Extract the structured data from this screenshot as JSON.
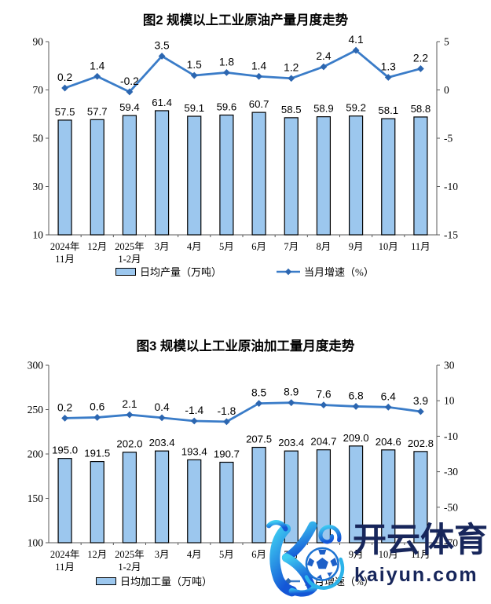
{
  "axis_color": "#595959",
  "chart_data": [
    {
      "type": "combo",
      "title": "图2 规模以上工业原油产量月度走势",
      "categories": [
        [
          "2024年",
          "11月"
        ],
        [
          "12月"
        ],
        [
          "2025年",
          "1-2月"
        ],
        [
          "3月"
        ],
        [
          "4月"
        ],
        [
          "5月"
        ],
        [
          "6月"
        ],
        [
          "7月"
        ],
        [
          "8月"
        ],
        [
          "9月"
        ],
        [
          "10月"
        ],
        [
          "11月"
        ]
      ],
      "series": [
        {
          "name": "日均产量（万吨）",
          "type": "bar",
          "axis": "left",
          "color": "#9CC7EE",
          "border_color": "#000000",
          "values": [
            57.5,
            57.7,
            59.4,
            61.4,
            59.1,
            59.6,
            60.7,
            58.5,
            58.9,
            59.2,
            58.1,
            58.8
          ]
        },
        {
          "name": "当月增速（%）",
          "type": "line",
          "axis": "right",
          "color": "#3A7CC8",
          "marker": "diamond",
          "marker_color": "#2C66B0",
          "values": [
            0.2,
            1.4,
            -0.2,
            3.5,
            1.5,
            1.8,
            1.4,
            1.2,
            2.4,
            4.1,
            1.3,
            2.2
          ]
        }
      ],
      "left_axis": {
        "min": 10,
        "max": 90,
        "ticks": [
          90,
          70,
          50,
          30,
          10
        ]
      },
      "right_axis": {
        "min": -15,
        "max": 5,
        "ticks": [
          5,
          0,
          -5,
          -10,
          -15
        ]
      },
      "legend_position": "bottom",
      "grid": false
    },
    {
      "type": "combo",
      "title": "图3 规模以上工业原油加工量月度走势",
      "categories": [
        [
          "2024年",
          "11月"
        ],
        [
          "12月"
        ],
        [
          "2025年",
          "1-2月"
        ],
        [
          "3月"
        ],
        [
          "4月"
        ],
        [
          "5月"
        ],
        [
          "6月"
        ],
        [
          "7月"
        ],
        [
          "8月"
        ],
        [
          "9月"
        ],
        [
          "10月"
        ],
        [
          "11月"
        ]
      ],
      "series": [
        {
          "name": "日均加工量（万吨）",
          "type": "bar",
          "axis": "left",
          "color": "#9CC7EE",
          "border_color": "#000000",
          "values": [
            195.0,
            191.5,
            202.0,
            203.4,
            193.4,
            190.7,
            207.5,
            203.4,
            204.7,
            209.0,
            204.6,
            202.8
          ]
        },
        {
          "name": "当月增速（%）",
          "type": "line",
          "axis": "right",
          "color": "#3A7CC8",
          "marker": "diamond",
          "marker_color": "#2C66B0",
          "values": [
            0.2,
            0.6,
            2.1,
            0.4,
            -1.4,
            -1.8,
            8.5,
            8.9,
            7.6,
            6.8,
            6.4,
            3.9
          ]
        }
      ],
      "left_axis": {
        "min": 100,
        "max": 300,
        "ticks": [
          300,
          250,
          200,
          150,
          100
        ]
      },
      "right_axis": {
        "min": -70,
        "max": 30,
        "ticks": [
          30,
          10,
          -10,
          -30,
          -50,
          -70
        ]
      },
      "legend_position": "bottom",
      "grid": false
    }
  ],
  "watermark": {
    "brand_text": "开云体育",
    "domain_text": "kaiyun.com",
    "text_color": "#17265B",
    "logo_colors": {
      "gradient_start": "#3ECDF2",
      "gradient_end": "#1456D6",
      "ball_outline": "#1C73D2",
      "ball_patch": "#1C5FC8"
    }
  }
}
